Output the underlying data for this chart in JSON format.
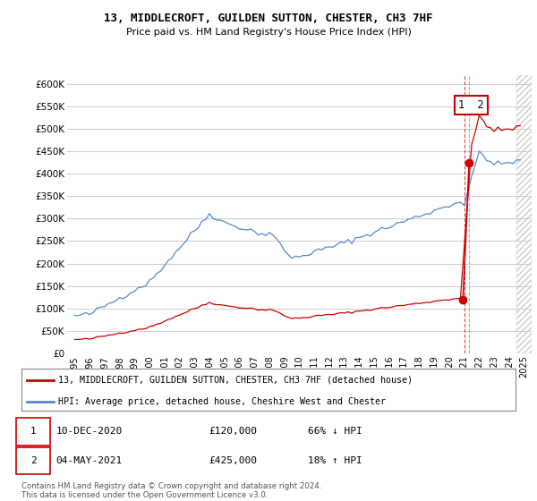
{
  "title": "13, MIDDLECROFT, GUILDEN SUTTON, CHESTER, CH3 7HF",
  "subtitle": "Price paid vs. HM Land Registry's House Price Index (HPI)",
  "ylim": [
    0,
    620000
  ],
  "yticks": [
    0,
    50000,
    100000,
    150000,
    200000,
    250000,
    300000,
    350000,
    400000,
    450000,
    500000,
    550000,
    600000
  ],
  "ytick_labels": [
    "£0",
    "£50K",
    "£100K",
    "£150K",
    "£200K",
    "£250K",
    "£300K",
    "£350K",
    "£400K",
    "£450K",
    "£500K",
    "£550K",
    "£600K"
  ],
  "xlim_start": 1994.5,
  "xlim_end": 2025.5,
  "hpi_color": "#5588cc",
  "price_color": "#cc0000",
  "background_color": "#ffffff",
  "grid_color": "#cccccc",
  "legend_label_red": "13, MIDDLECROFT, GUILDEN SUTTON, CHESTER, CH3 7HF (detached house)",
  "legend_label_blue": "HPI: Average price, detached house, Cheshire West and Chester",
  "transaction1_date": "10-DEC-2020",
  "transaction1_price": "£120,000",
  "transaction1_hpi": "66% ↓ HPI",
  "transaction2_date": "04-MAY-2021",
  "transaction2_price": "£425,000",
  "transaction2_hpi": "18% ↑ HPI",
  "footer": "Contains HM Land Registry data © Crown copyright and database right 2024.\nThis data is licensed under the Open Government Licence v3.0.",
  "marker1_x": 2020.92,
  "marker1_y": 120000,
  "marker2_x": 2021.33,
  "marker2_y": 425000,
  "vline_x": 2021.0,
  "hatch_start": 2024.5
}
